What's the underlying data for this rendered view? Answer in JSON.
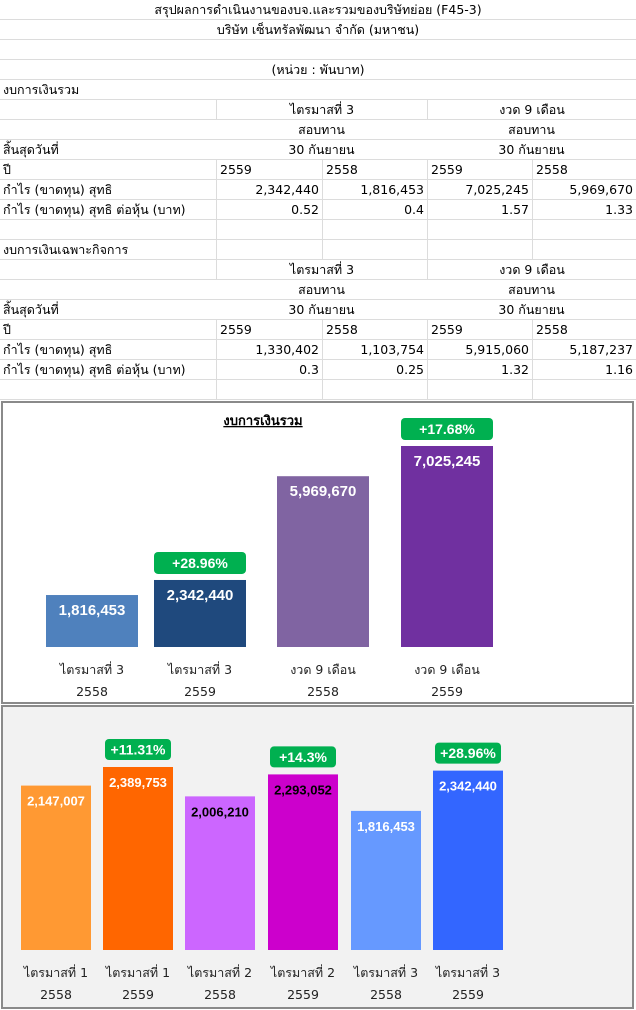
{
  "header": {
    "title": "สรุปผลการดำเนินงานของบจ.และรวมของบริษัทย่อย (F45-3)",
    "company": "บริษัท เซ็นทรัลพัฒนา จำกัด (มหาชน)",
    "unit": "(หน่วย : พันบาท)"
  },
  "tables": [
    {
      "section_title": "งบการเงินรวม",
      "period_headers": [
        "ไตรมาสที่ 3",
        "งวด 9 เดือน"
      ],
      "review_headers": [
        "สอบทาน",
        "สอบทาน"
      ],
      "end_date_label": "สิ้นสุดวันที่",
      "end_dates": [
        "30 กันยายน",
        "30 กันยายน"
      ],
      "year_label": "ปี",
      "years": [
        "2559",
        "2558",
        "2559",
        "2558"
      ],
      "rows": [
        {
          "label": "กำไร (ขาดทุน) สุทธิ",
          "values": [
            "2,342,440",
            "1,816,453",
            "7,025,245",
            "5,969,670"
          ]
        },
        {
          "label": "กำไร (ขาดทุน) สุทธิ ต่อหุ้น (บาท)",
          "values": [
            "0.52",
            "0.4",
            "1.57",
            "1.33"
          ]
        }
      ]
    },
    {
      "section_title": "งบการเงินเฉพาะกิจการ",
      "period_headers": [
        "ไตรมาสที่ 3",
        "งวด 9 เดือน"
      ],
      "review_headers": [
        "สอบทาน",
        "สอบทาน"
      ],
      "end_date_label": "สิ้นสุดวันที่",
      "end_dates": [
        "30 กันยายน",
        "30 กันยายน"
      ],
      "year_label": "ปี",
      "years": [
        "2559",
        "2558",
        "2559",
        "2558"
      ],
      "rows": [
        {
          "label": "กำไร (ขาดทุน) สุทธิ",
          "values": [
            "1,330,402",
            "1,103,754",
            "5,915,060",
            "5,187,237"
          ]
        },
        {
          "label": "กำไร (ขาดทุน) สุทธิ ต่อหุ้น (บาท)",
          "values": [
            "0.3",
            "0.25",
            "1.32",
            "1.16"
          ]
        }
      ]
    }
  ],
  "chart_data": [
    {
      "type": "bar",
      "title": "งบการเงินรวม",
      "xlabel": "",
      "ylabel": "",
      "grid": false,
      "legend": "none",
      "categories": [
        [
          "ไตรมาสที่ 3",
          "2558"
        ],
        [
          "ไตรมาสที่ 3",
          "2559"
        ],
        [
          "งวด 9 เดือน",
          "2558"
        ],
        [
          "งวด 9 เดือน",
          "2559"
        ]
      ],
      "values": [
        1816453,
        2342440,
        5969670,
        7025245
      ],
      "value_labels": [
        "1,816,453",
        "2,342,440",
        "5,969,670",
        "7,025,245"
      ],
      "colors": [
        "#4f81bd",
        "#1f497d",
        "#8064a2",
        "#7030a0"
      ],
      "label_colors": [
        "#ffffff",
        "#ffffff",
        "#ffffff",
        "#ffffff"
      ],
      "growth_badges": [
        null,
        "+28.96%",
        null,
        "+17.68%"
      ],
      "badge_color": "#00b050",
      "ylim": [
        0,
        7025245
      ]
    },
    {
      "type": "bar",
      "title": "",
      "xlabel": "",
      "ylabel": "",
      "grid": false,
      "legend": "none",
      "categories": [
        [
          "ไตรมาสที่ 1",
          "2558"
        ],
        [
          "ไตรมาสที่ 1",
          "2559"
        ],
        [
          "ไตรมาสที่ 2",
          "2558"
        ],
        [
          "ไตรมาสที่ 2",
          "2559"
        ],
        [
          "ไตรมาสที่ 3",
          "2558"
        ],
        [
          "ไตรมาสที่ 3",
          "2559"
        ]
      ],
      "values": [
        2147007,
        2389753,
        2006210,
        2293052,
        1816453,
        2342440
      ],
      "value_labels": [
        "2,147,007",
        "2,389,753",
        "2,006,210",
        "2,293,052",
        "1,816,453",
        "2,342,440"
      ],
      "colors": [
        "#ff9933",
        "#ff6600",
        "#cc66ff",
        "#cc00cc",
        "#6699ff",
        "#3366ff"
      ],
      "label_colors": [
        "#ffffff",
        "#ffffff",
        "#000000",
        "#000000",
        "#ffffff",
        "#ffffff"
      ],
      "growth_badges": [
        null,
        "+11.31%",
        null,
        "+14.3%",
        null,
        "+28.96%"
      ],
      "badge_color": "#00b050",
      "ylim": [
        0,
        2389753
      ]
    }
  ]
}
